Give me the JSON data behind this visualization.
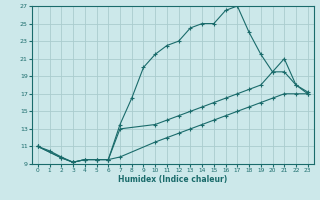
{
  "xlabel": "Humidex (Indice chaleur)",
  "bg_color": "#cce8ea",
  "grid_color": "#aaccce",
  "line_color": "#1a6b6b",
  "xlim": [
    -0.5,
    23.5
  ],
  "ylim": [
    9,
    27
  ],
  "xticks": [
    0,
    1,
    2,
    3,
    4,
    5,
    6,
    7,
    8,
    9,
    10,
    11,
    12,
    13,
    14,
    15,
    16,
    17,
    18,
    19,
    20,
    21,
    22,
    23
  ],
  "yticks": [
    9,
    11,
    13,
    15,
    17,
    19,
    21,
    23,
    25,
    27
  ],
  "line1_x": [
    0,
    1,
    2,
    3,
    4,
    5,
    6,
    7,
    8,
    9,
    10,
    11,
    12,
    13,
    14,
    15,
    16,
    17,
    18,
    19,
    20,
    21,
    22,
    23
  ],
  "line1_y": [
    11,
    10.5,
    9.8,
    9.2,
    9.5,
    9.5,
    9.5,
    13.5,
    16.5,
    20,
    21.5,
    22.5,
    23,
    24.5,
    25,
    25,
    26.5,
    27,
    24,
    21.5,
    19.5,
    21,
    18,
    17
  ],
  "line2_x": [
    0,
    2,
    3,
    4,
    5,
    6,
    7,
    10,
    11,
    12,
    13,
    14,
    15,
    16,
    17,
    18,
    19,
    20,
    21,
    22,
    23
  ],
  "line2_y": [
    11,
    9.7,
    9.2,
    9.5,
    9.5,
    9.5,
    13,
    13.5,
    14,
    14.5,
    15,
    15.5,
    16,
    16.5,
    17,
    17.5,
    18,
    19.5,
    19.5,
    18,
    17.2
  ],
  "line3_x": [
    0,
    2,
    3,
    4,
    5,
    6,
    7,
    10,
    11,
    12,
    13,
    14,
    15,
    16,
    17,
    18,
    19,
    20,
    21,
    22,
    23
  ],
  "line3_y": [
    11,
    9.7,
    9.2,
    9.5,
    9.5,
    9.5,
    9.8,
    11.5,
    12,
    12.5,
    13,
    13.5,
    14,
    14.5,
    15,
    15.5,
    16,
    16.5,
    17,
    17,
    17
  ]
}
